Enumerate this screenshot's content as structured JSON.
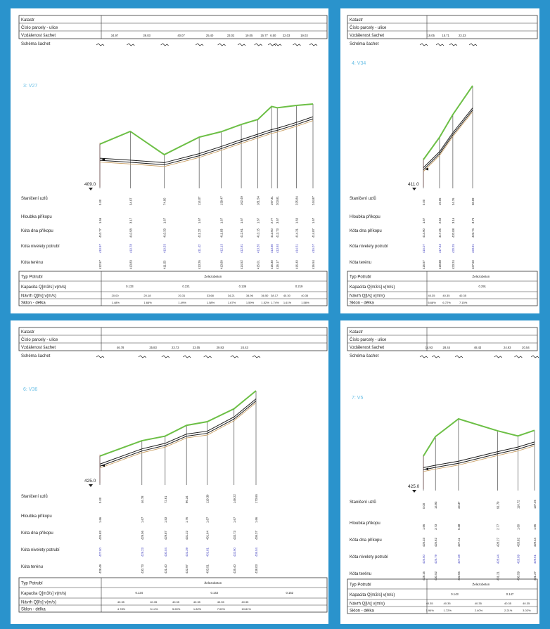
{
  "row_labels": {
    "katastr": "Katastr",
    "cislo_parcely": "Číslo parcely - ulice",
    "vzdalenost": "Vzdálenost šachet",
    "schema": "Schéma šachet",
    "staniceni": "Staničení uzlů",
    "hloubka": "Hloubka příkopu",
    "kota_dna": "Kóta dna příkopu",
    "kota_nivelety": "Kóta nivelety potrubí",
    "kota_terenu": "Kóta terénu",
    "typ_potrubi": "Typ Potrubí",
    "kapacita": "Kapacita Q[m3/s] v(m/s)",
    "navrh": "Návrh Q[l/s] v(m/s)",
    "sklon": "Sklon - délka"
  },
  "colors": {
    "frame": "#2a93cc",
    "terrain": "#6cbf45",
    "pipe": "#1a1a1a",
    "pipe_offset": "#c89a5a",
    "datum_line": "#e2a0a0",
    "title": "#6cc0e6",
    "blue_values": "#3d3dbe"
  },
  "panels": [
    {
      "id": "v27",
      "title": "3: V27",
      "datum": "409.0",
      "pipe_type": "Železobeton",
      "distances": [
        "34.97",
        "39.03",
        "40.07",
        "25.40",
        "23.02",
        "19.05",
        "15.77",
        "6.50",
        "22.03",
        "19.03"
      ],
      "stations": [
        "0.00",
        "34.97",
        "74.00",
        "114.07",
        "139.47",
        "162.49",
        "181.54",
        "197.31",
        "203.81",
        "225.84",
        "244.87"
      ],
      "depths": [
        "1.66",
        "3.17",
        "1.67",
        "1.67",
        "1.67",
        "1.67",
        "1.67",
        "2.77",
        "3.57",
        "1.66",
        "1.67"
      ],
      "dno": [
        "410.77",
        "410.58",
        "410.33",
        "411.22",
        "411.93",
        "412.61",
        "413.15",
        "413.60",
        "413.73",
        "414.31",
        "414.87"
      ],
      "niveleta": [
        "410.97",
        "410.78",
        "410.53",
        "411.42",
        "412.13",
        "412.81",
        "413.35",
        "413.80",
        "413.93",
        "414.51",
        "415.07"
      ],
      "teren": [
        "412.57",
        "413.83",
        "411.53",
        "413.26",
        "413.80",
        "414.52",
        "415.01",
        "416.30",
        "416.17",
        "416.40",
        "416.54"
      ],
      "kapacita": [
        "0.133",
        "0.221",
        "0.136",
        "0.219"
      ],
      "navrh": [
        "20.00",
        "20.18",
        "20.31",
        "33.68",
        "34.21",
        "34.96",
        "36.50",
        "38.17",
        "40.30",
        "40.35"
      ],
      "sklon": [
        "1.48%",
        "1.66%",
        "1.49%",
        "1.58%",
        "1.67%",
        "1.59%",
        "1.52%",
        "1.74%",
        "1.61%",
        "1.58%"
      ]
    },
    {
      "id": "v34",
      "title": "4: V34",
      "datum": "411.0",
      "pipe_type": "Železobeton",
      "distances": [
        "19.05",
        "15.71",
        "23.33"
      ],
      "stations": [
        "0.00",
        "19.05",
        "34.76",
        "58.09"
      ],
      "depths": [
        "1.67",
        "2.62",
        "3.16",
        "3.76"
      ],
      "dno": [
        "414.90",
        "417.26",
        "420.08",
        "423.74"
      ],
      "niveleta": [
        "415.07",
        "417.43",
        "420.25",
        "423.91"
      ],
      "teren": [
        "416.57",
        "419.88",
        "423.24",
        "427.50"
      ],
      "kapacita": [
        "0.291"
      ],
      "navrh": [
        "40.35",
        "40.35",
        "40.35"
      ],
      "sklon": [
        "6.68%",
        "6.72%",
        "7.15%"
      ]
    },
    {
      "id": "v36",
      "title": "6: V36",
      "datum": "425.0",
      "pipe_type": "Železobeton",
      "distances": [
        "46.78",
        "25.83",
        "23.73",
        "23.05",
        "29.83",
        "24.43"
      ],
      "stations": [
        "0.00",
        "46.78",
        "72.61",
        "96.34",
        "119.39",
        "149.22",
        "173.65"
      ],
      "depths": [
        "1.66",
        "1.67",
        "1.53",
        "1.76",
        "1.87",
        "1.67",
        "1.66"
      ],
      "dno": [
        "426.83",
        "429.06",
        "429.87",
        "431.22",
        "431.64",
        "433.73",
        "436.37"
      ],
      "niveleta": [
        "427.00",
        "429.23",
        "430.04",
        "431.39",
        "431.81",
        "433.90",
        "436.54"
      ],
      "teren": [
        "428.49",
        "430.73",
        "431.40",
        "432.97",
        "433.51",
        "435.40",
        "438.03"
      ],
      "kapacita": [
        "0.134",
        "0.143",
        "0.152"
      ],
      "navrh": [
        "40.35",
        "40.35",
        "40.35",
        "40.35",
        "40.35",
        "40.35"
      ],
      "sklon": [
        "4.78%",
        "3.14%",
        "5.69%",
        "1.82%",
        "7.00%",
        "10.81%"
      ]
    },
    {
      "id": "v5",
      "title": "7: V5",
      "datum": "425.0",
      "pipe_type": "Železobeton",
      "distances": [
        "14.93",
        "28.44",
        "48.43",
        "24.93",
        "20.54"
      ],
      "stations": [
        "0.00",
        "14.93",
        "43.37",
        "91.79",
        "116.72",
        "137.26"
      ],
      "depths": [
        "1.66",
        "3.73",
        "5.38",
        "2.77",
        "1.60",
        "1.66"
      ],
      "dno": [
        "426.33",
        "426.62",
        "427.11",
        "428.27",
        "428.82",
        "429.44"
      ],
      "niveleta": [
        "426.50",
        "426.79",
        "427.28",
        "428.44",
        "428.99",
        "429.61"
      ],
      "teren": [
        "428.16",
        "430.52",
        "432.66",
        "431.21",
        "430.59",
        "431.27"
      ],
      "kapacita": [
        "0.143",
        "0.147"
      ],
      "navrh": [
        "40.35",
        "40.35",
        "40.35",
        "40.35",
        "40.35"
      ],
      "sklon": [
        "1.94%",
        "1.72%",
        "2.40%",
        "2.21%",
        "3.02%"
      ]
    }
  ]
}
